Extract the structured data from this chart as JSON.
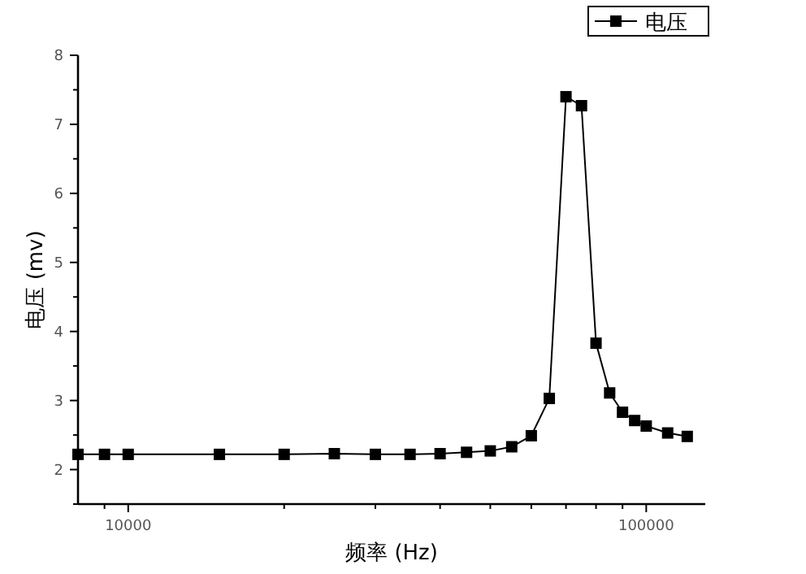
{
  "chart_data": {
    "type": "line",
    "xlabel": "频率 (Hz)",
    "ylabel": "电压 (mv)",
    "log": "x",
    "grid": false,
    "legend": "top right",
    "marker": "square",
    "line_style": "solid",
    "xlim": [
      8000,
      130000
    ],
    "ylim": [
      1.5,
      8
    ],
    "xticks": [
      {
        "value": 9000,
        "label": null
      },
      10000,
      {
        "value": 20000,
        "label": null
      },
      {
        "value": 30000,
        "label": null
      },
      {
        "value": 40000,
        "label": null
      },
      {
        "value": 50000,
        "label": null
      },
      {
        "value": 60000,
        "label": null
      },
      {
        "value": 70000,
        "label": null
      },
      {
        "value": 80000,
        "label": null
      },
      {
        "value": 90000,
        "label": null
      },
      100000
    ],
    "yticks": [
      2,
      3,
      4,
      5,
      6,
      7,
      8
    ],
    "series": [
      {
        "name": "电压",
        "color": "#000000",
        "x": [
          8000,
          9000,
          10000,
          15000,
          20000,
          25000,
          30000,
          35000,
          40000,
          45000,
          50000,
          55000,
          60000,
          65000,
          70000,
          75000,
          80000,
          85000,
          90000,
          95000,
          100000,
          110000,
          120000
        ],
        "values": [
          2.22,
          2.22,
          2.22,
          2.22,
          2.22,
          2.23,
          2.22,
          2.22,
          2.23,
          2.25,
          2.27,
          2.33,
          2.49,
          3.03,
          7.4,
          7.27,
          3.83,
          3.11,
          2.83,
          2.71,
          2.63,
          2.53,
          2.48
        ]
      }
    ]
  }
}
